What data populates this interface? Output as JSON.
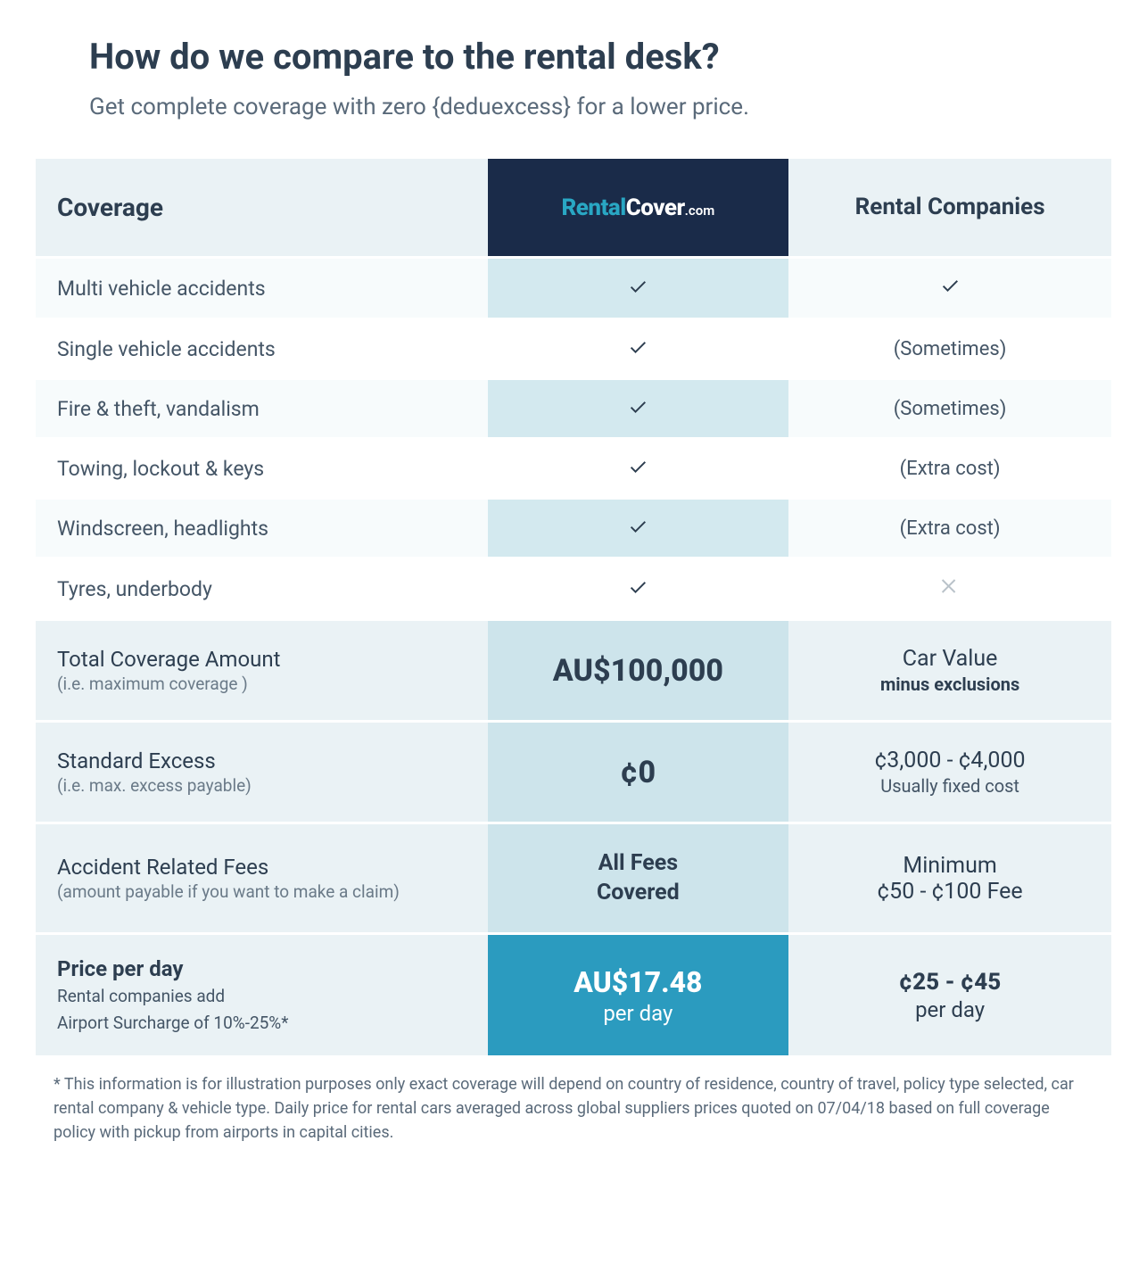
{
  "heading": "How do we compare to the rental desk?",
  "subheading": "Get complete coverage with zero {deduexcess} for a lower price.",
  "colors": {
    "page_bg": "#ffffff",
    "header_row_bg": "#eaf2f5",
    "brand_cell_bg": "#1a2b49",
    "brand_rental_color": "#29a7c4",
    "brand_cover_color": "#ffffff",
    "feature_row_bg": "#f7fbfc",
    "feature_row_alt_bg": "#ffffff",
    "us_col_feature_bg": "#d3e9ef",
    "value_row_bg": "#eaf2f5",
    "us_col_value_bg": "#cde4eb",
    "price_us_bg": "#2b9bbf",
    "price_us_text": "#ffffff",
    "text_primary": "#2d3e50",
    "text_secondary": "#5a6a7a",
    "check_color": "#2d3e50",
    "x_color": "#b9c2c9"
  },
  "typography": {
    "heading_fontsize": 40,
    "subheading_fontsize": 26,
    "coverage_header_fontsize": 28,
    "brand_fontsize": 26,
    "them_header_fontsize": 26,
    "feature_label_fontsize": 23,
    "feature_them_fontsize": 22,
    "value_label_main_fontsize": 24,
    "value_label_sub_fontsize": 19,
    "us_big_fontsize": 34,
    "us_mid_fontsize": 25,
    "them_top_fontsize": 25,
    "them_sub_fontsize": 20,
    "price_us_fontsize": 32,
    "price_them_fontsize": 26,
    "footnote_fontsize": 18
  },
  "table": {
    "type": "comparison-table",
    "columns": {
      "label_header": "Coverage",
      "us_brand": {
        "rental": "Rental",
        "cover": "Cover",
        "dotcom": ".com"
      },
      "them_header": "Rental Companies"
    },
    "features": [
      {
        "label": "Multi vehicle accidents",
        "us": "check",
        "them": "check"
      },
      {
        "label": "Single vehicle accidents",
        "us": "check",
        "them": "(Sometimes)"
      },
      {
        "label": "Fire & theft, vandalism",
        "us": "check",
        "them": "(Sometimes)"
      },
      {
        "label": "Towing, lockout & keys",
        "us": "check",
        "them": "(Extra cost)"
      },
      {
        "label": "Windscreen, headlights",
        "us": "check",
        "them": "(Extra cost)"
      },
      {
        "label": "Tyres, underbody",
        "us": "check",
        "them": "x"
      }
    ],
    "values": [
      {
        "label_main": "Total Coverage Amount",
        "label_sub": "(i.e. maximum coverage )",
        "us_big": "AU$100,000",
        "them_top": "Car Value",
        "them_sub_bold": "minus exclusions"
      },
      {
        "label_main": "Standard Excess",
        "label_sub": "(i.e. max. excess payable)",
        "us_big": "¢0",
        "them_top": "¢3,000 - ¢4,000",
        "them_sub_light": "Usually fixed cost"
      },
      {
        "label_main": "Accident Related Fees",
        "label_sub": "(amount payable if you want to make a claim)",
        "us_mid_l1": "All Fees",
        "us_mid_l2": "Covered",
        "them_top": "Minimum",
        "them_top2": "¢50 - ¢100 Fee"
      }
    ],
    "price": {
      "label_main": "Price per day",
      "label_sub_l1": "Rental companies add",
      "label_sub_l2": "Airport Surcharge of 10%-25%*",
      "us_price": "AU$17.48",
      "us_per": "per day",
      "them_price": "¢25 - ¢45",
      "them_per": "per day"
    }
  },
  "footnote": "* This information is for illustration purposes only exact coverage will depend on country of residence, country of travel, policy type selected, car rental company & vehicle type. Daily price for rental cars averaged across global suppliers prices quoted on 07/04/18 based on full coverage policy with pickup from airports in capital cities."
}
